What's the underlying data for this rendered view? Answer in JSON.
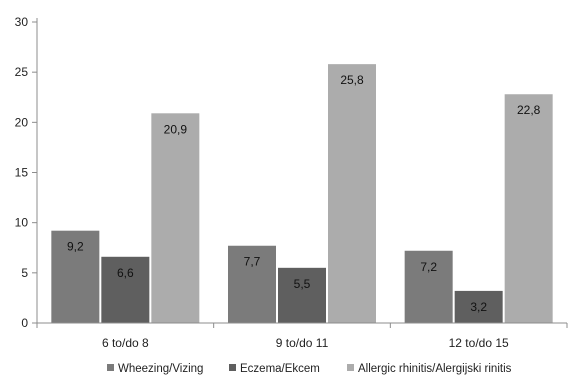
{
  "chart_data": {
    "type": "bar",
    "categories": [
      "6 to/do 8",
      "9 to/do 11",
      "12 to/do 15"
    ],
    "series": [
      {
        "name": "Wheezing/Vizing",
        "values": [
          "9,2",
          "7,7",
          "7,2"
        ],
        "numeric": [
          9.2,
          7.7,
          7.2
        ],
        "color": "#7b7b7b"
      },
      {
        "name": "Eczema/Ekcem",
        "values": [
          "6,6",
          "5,5",
          "3,2"
        ],
        "numeric": [
          6.6,
          5.5,
          3.2
        ],
        "color": "#5f5f5f"
      },
      {
        "name": "Allergic rhinitis/Alergijski rinitis",
        "values": [
          "20,9",
          "25,8",
          "22,8"
        ],
        "numeric": [
          20.9,
          25.8,
          22.8
        ],
        "color": "#acacac"
      }
    ],
    "yticks": [
      "0",
      "5",
      "10",
      "15",
      "20",
      "25",
      "30"
    ],
    "ylim": [
      0,
      30
    ],
    "grid": false,
    "legend_position": "bottom"
  }
}
